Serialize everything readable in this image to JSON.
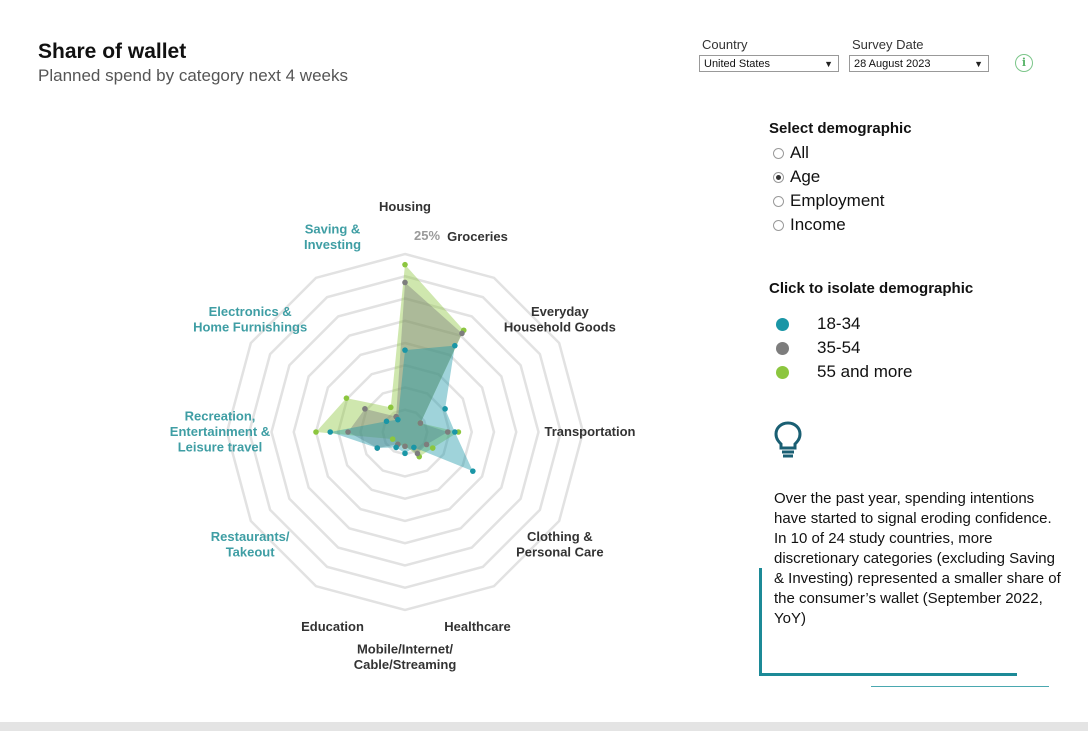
{
  "header": {
    "title": "Share of wallet",
    "subtitle": "Planned spend by category next 4 weeks"
  },
  "filters": {
    "country_label": "Country",
    "country_value": "United States",
    "date_label": "Survey Date",
    "date_value": "28 August 2023",
    "info_icon": "info-icon"
  },
  "demographic": {
    "title": "Select demographic",
    "options": [
      "All",
      "Age",
      "Employment",
      "Income"
    ],
    "selected": "Age"
  },
  "isolate": {
    "title": "Click to isolate demographic",
    "items": [
      {
        "label": "18-34",
        "color": "#1a96a6"
      },
      {
        "label": "35-54",
        "color": "#7d7d7d"
      },
      {
        "label": "55 and more",
        "color": "#8cc63f"
      }
    ]
  },
  "insight": {
    "icon": "lightbulb-icon",
    "text": "Over the past year, spending intentions have started to signal eroding confidence. In 10 of 24 study countries, more discretionary categories (excluding Saving & Investing) represented a smaller share of the consumer’s wallet (September 2022, YoY)"
  },
  "chart_data": {
    "type": "radar",
    "max_label": "25%",
    "r_max": 25,
    "rings": 8,
    "categories": [
      {
        "name": "Housing",
        "lines": [
          "Housing"
        ],
        "discretionary": false
      },
      {
        "name": "Groceries",
        "lines": [
          "Groceries"
        ],
        "discretionary": false
      },
      {
        "name": "Everyday Household Goods",
        "lines": [
          "Everyday",
          "Household Goods"
        ],
        "discretionary": false
      },
      {
        "name": "Transportation",
        "lines": [
          "Transportation"
        ],
        "discretionary": false
      },
      {
        "name": "Clothing & Personal Care",
        "lines": [
          "Clothing &",
          "Personal Care"
        ],
        "discretionary": false
      },
      {
        "name": "Healthcare",
        "lines": [
          "Healthcare"
        ],
        "discretionary": false
      },
      {
        "name": "Mobile/Internet/Cable/Streaming",
        "lines": [
          "Mobile/Internet/",
          "Cable/Streaming"
        ],
        "discretionary": false
      },
      {
        "name": "Education",
        "lines": [
          "Education"
        ],
        "discretionary": false
      },
      {
        "name": "Restaurants/Takeout",
        "lines": [
          "Restaurants/",
          "Takeout"
        ],
        "discretionary": true
      },
      {
        "name": "Recreation, Entertainment & Leisure travel",
        "lines": [
          "Recreation,",
          "Entertainment &",
          "Leisure travel"
        ],
        "discretionary": true
      },
      {
        "name": "Electronics & Home Furnishings",
        "lines": [
          "Electronics &",
          "Home Furnishings"
        ],
        "discretionary": true
      },
      {
        "name": "Saving & Investing",
        "lines": [
          "Saving &",
          "Investing"
        ],
        "discretionary": true
      }
    ],
    "series": [
      {
        "name": "55 and more",
        "color": "#8cc63f",
        "values": [
          23.5,
          16.5,
          2.5,
          7.5,
          4.5,
          4,
          2,
          2,
          2,
          12.5,
          9.5,
          4
        ]
      },
      {
        "name": "35-54",
        "color": "#7d7d7d",
        "values": [
          21,
          16,
          2.5,
          6,
          3.5,
          3.5,
          2,
          2,
          4.5,
          8,
          6.5,
          2.5
        ]
      },
      {
        "name": "18-34",
        "color": "#1a96a6",
        "values": [
          11.5,
          14,
          6.5,
          7,
          11,
          2.5,
          3,
          2.5,
          4.5,
          10.5,
          3,
          2
        ]
      }
    ]
  }
}
